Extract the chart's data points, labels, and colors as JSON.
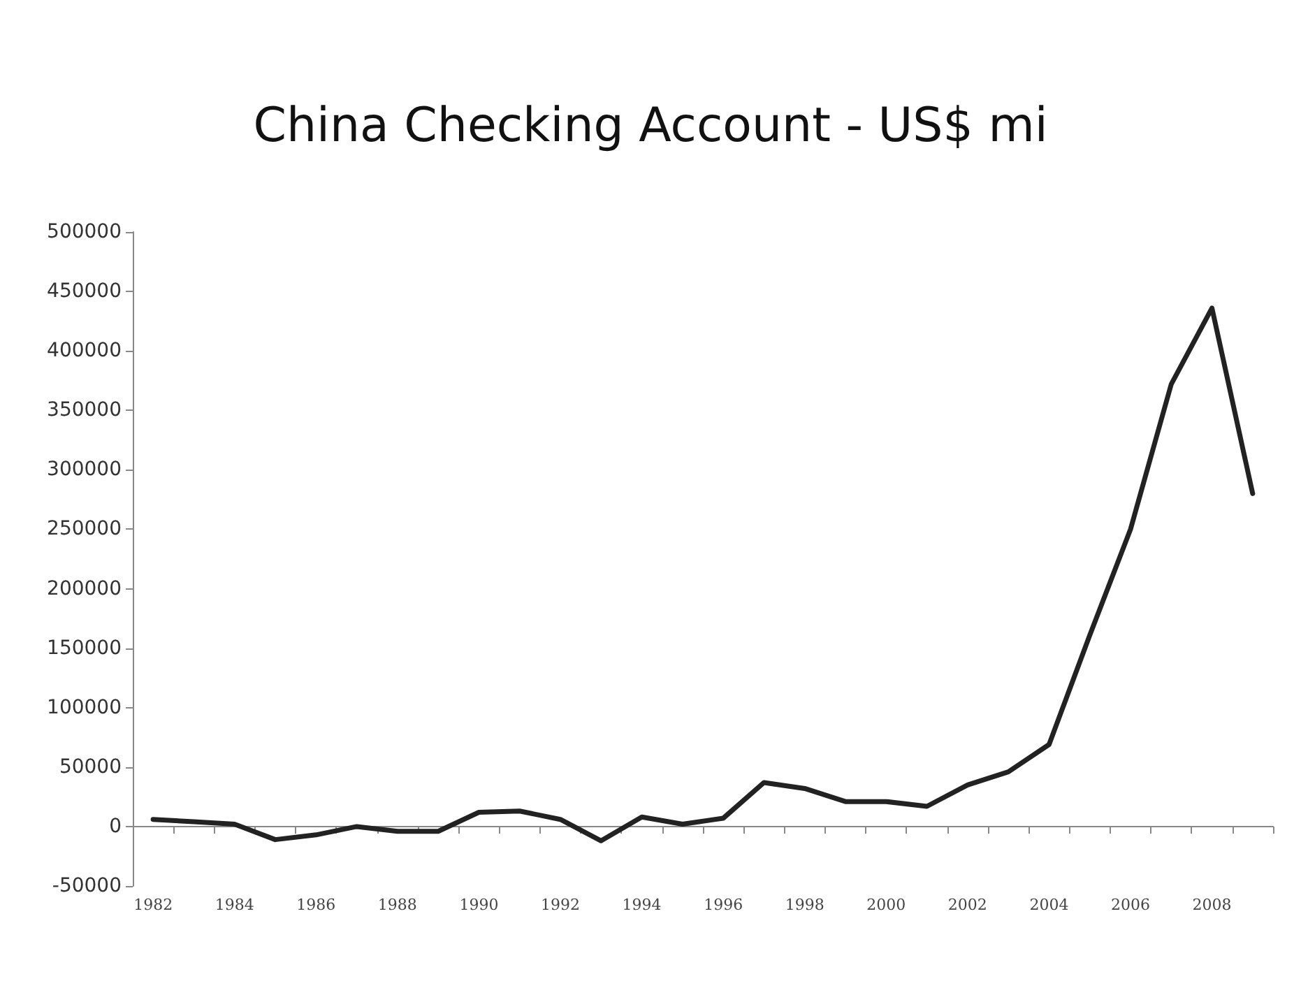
{
  "chart_data": {
    "type": "line",
    "title": "China Checking Account - US$ mi",
    "categories": [
      "1982",
      null,
      "1984",
      null,
      "1986",
      null,
      "1988",
      null,
      "1990",
      null,
      "1992",
      null,
      "1994",
      null,
      "1996",
      null,
      "1998",
      null,
      "2000",
      null,
      "2002",
      null,
      "2004",
      null,
      "2006",
      null,
      "2008",
      null
    ],
    "series": [
      {
        "color": "#222222",
        "values": [
          6000,
          4000,
          2000,
          -11000,
          -7000,
          0,
          -4000,
          -4000,
          12000,
          13000,
          6000,
          -12000,
          8000,
          2000,
          7000,
          37000,
          32000,
          21000,
          21000,
          17000,
          35000,
          46000,
          69000,
          161000,
          250000,
          372000,
          436000,
          280000
        ]
      }
    ],
    "ylim": [
      -50000,
      500000
    ],
    "yticks": [
      -50000,
      0,
      50000,
      100000,
      150000,
      200000,
      250000,
      300000,
      350000,
      400000,
      450000,
      500000
    ],
    "marker": "none",
    "line_style": "solid"
  }
}
